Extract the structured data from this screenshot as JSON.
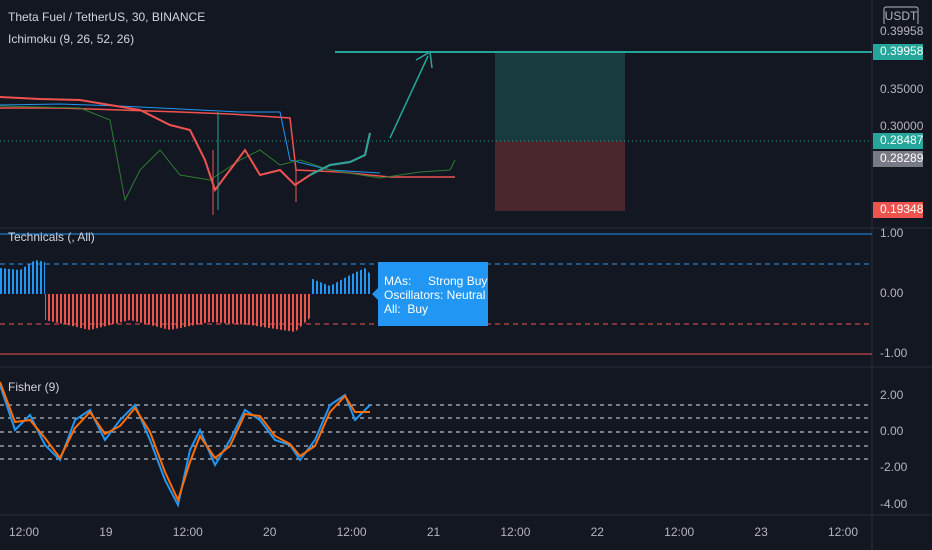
{
  "header": {
    "symbol": "Theta Fuel / TetherUS, 30, BINANCE",
    "indicator": "Ichimoku (9, 26, 52, 26)",
    "currency": "USDT"
  },
  "main_pane": {
    "price_labels": [
      "0.35000",
      "0.30000"
    ],
    "tags": {
      "top": "0.39958",
      "target": "0.39958",
      "last": "0.28487",
      "entry": "0.28289",
      "stop": "0.19348"
    }
  },
  "technicals_pane": {
    "title": "Technicals (, All)",
    "axis": [
      "1.00",
      "0.00",
      "-1.00"
    ],
    "tooltip": [
      "MAs:     Strong Buy",
      "Oscillators: Neutral",
      "All:  Buy"
    ]
  },
  "fisher_pane": {
    "title": "Fisher (9)",
    "axis": [
      "2.00",
      "0.00",
      "-2.00",
      "-4.00"
    ]
  },
  "time_axis": [
    "12:00",
    "19",
    "12:00",
    "20",
    "12:00",
    "21",
    "12:00",
    "22",
    "12:00",
    "23",
    "12:00"
  ]
}
